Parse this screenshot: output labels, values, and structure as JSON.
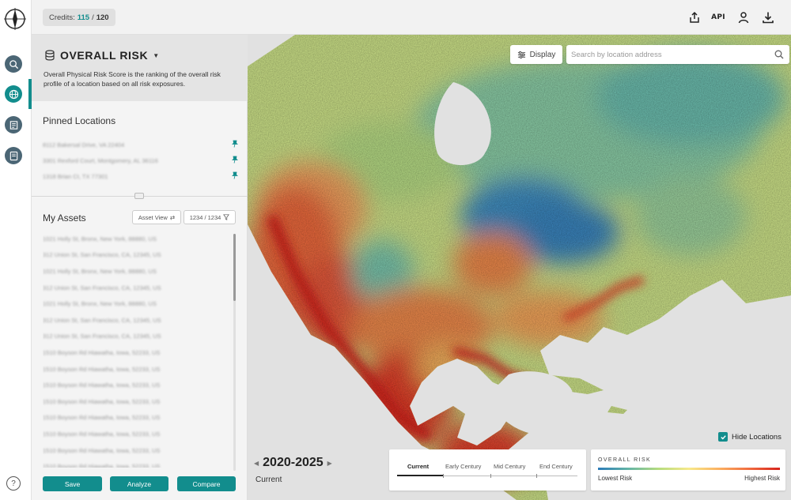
{
  "topbar": {
    "credits_label": "Credits:",
    "credits_used": "115",
    "credits_sep": "/",
    "credits_total": "120",
    "api_label": "API"
  },
  "panel": {
    "risk_title": "OVERALL RISK",
    "risk_description": "Overall Physical Risk Score is the ranking of the overall risk profile of a location based on all risk exposures.",
    "pinned_title": "Pinned Locations",
    "pinned": [
      "8112 Bakersal Drive, VA 22404",
      "3301 Rexford Court, Montgomery, AL 36116",
      "1318 Brian Ct, TX 77301"
    ],
    "assets_title": "My Assets",
    "asset_view_label": "Asset View",
    "asset_count": "1234 / 1234",
    "assets": [
      "1021 Holly St, Bronx, New York, 88880, US",
      "312 Union St, San Francisco, CA, 12345, US",
      "1021 Holly St, Bronx, New York, 88880, US",
      "312 Union St, San Francisco, CA, 12345, US",
      "1021 Holly St, Bronx, New York, 88880, US",
      "312 Union St, San Francisco, CA, 12345, US",
      "312 Union St, San Francisco, CA, 12345, US",
      "1510 Boyson Rd Hiawatha, Iowa, 52233, US",
      "1510 Boyson Rd Hiawatha, Iowa, 52233, US",
      "1510 Boyson Rd Hiawatha, Iowa, 52233, US",
      "1510 Boyson Rd Hiawatha, Iowa, 52233, US",
      "1510 Boyson Rd Hiawatha, Iowa, 52233, US",
      "1510 Boyson Rd Hiawatha, Iowa, 52233, US",
      "1510 Boyson Rd Hiawatha, Iowa, 52233, US",
      "1510 Boyson Rd Hiawatha, Iowa, 52233, US"
    ],
    "buttons": {
      "save": "Save",
      "analyze": "Analyze",
      "compare": "Compare"
    }
  },
  "map": {
    "display_label": "Display",
    "search_placeholder": "Search by location address",
    "hide_locations_label": "Hide Locations",
    "hide_locations_checked": true,
    "period": "2020-2025",
    "period_sub": "Current",
    "timeline": [
      "Current",
      "Early Century",
      "Mid Century",
      "End Century"
    ],
    "timeline_active": "Current",
    "legend_title": "OVERALL RISK",
    "legend_low": "Lowest Risk",
    "legend_high": "Highest Risk"
  },
  "colors": {
    "accent": "#128d8d",
    "rail_button": "#4b6675",
    "low_risk": "#2b7bb9",
    "mid_risk": "#f7e98a",
    "high_risk": "#d7241c"
  },
  "icons": {
    "logo": "compass-logo-icon",
    "rail": [
      "search-globe-icon",
      "globe-icon",
      "report-icon",
      "document-icon",
      "help-icon"
    ],
    "topbar": [
      "share-icon",
      "api-icon",
      "user-icon",
      "download-icon"
    ]
  }
}
